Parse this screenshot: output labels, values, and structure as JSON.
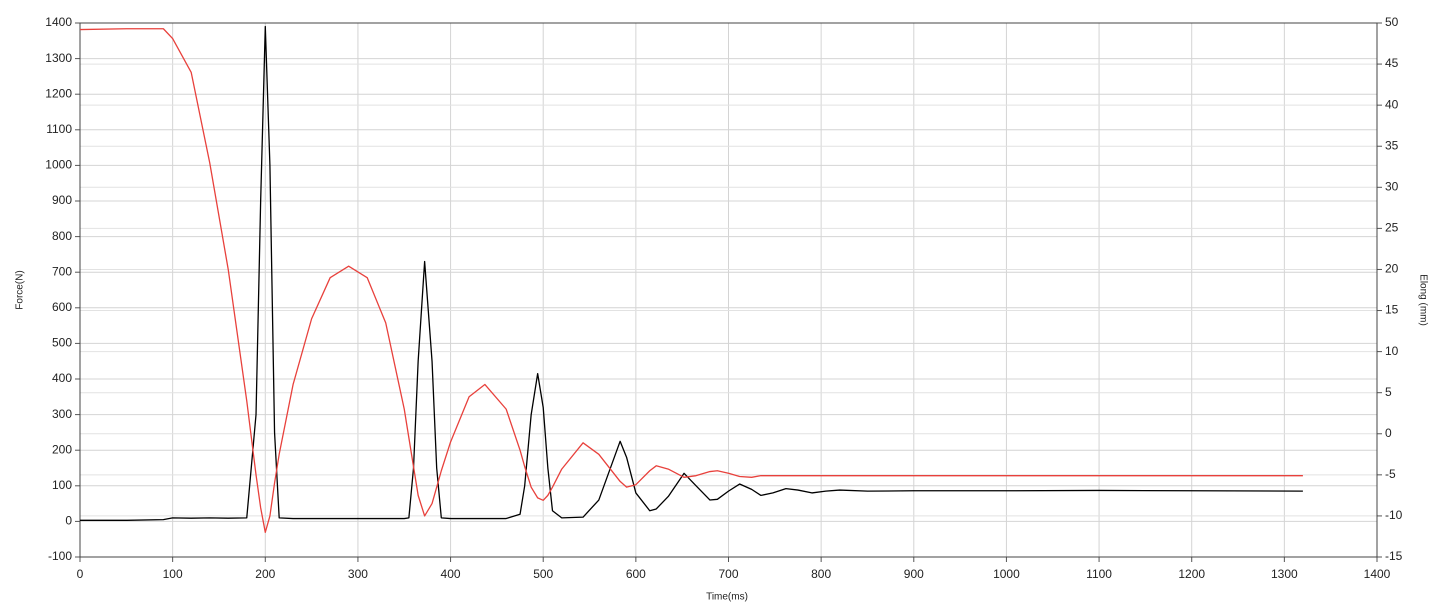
{
  "chart_data": {
    "type": "line",
    "xlabel": "Time(ms)",
    "ylabel": "Force(N)",
    "y2label": "Elong (mm)",
    "x": [
      0,
      50,
      90,
      100,
      120,
      140,
      160,
      180,
      190,
      195,
      200,
      205,
      210,
      215,
      230,
      250,
      270,
      290,
      310,
      330,
      350,
      355,
      360,
      365,
      372,
      380,
      385,
      390,
      400,
      420,
      437,
      460,
      475,
      480,
      487,
      494,
      500,
      505,
      510,
      520,
      543,
      560,
      583,
      590,
      600,
      615,
      622,
      635,
      652,
      665,
      680,
      688,
      700,
      712,
      725,
      735,
      748,
      762,
      775,
      790,
      805,
      820,
      850,
      900,
      1000,
      1100,
      1200,
      1320
    ],
    "series": [
      {
        "color": "#000000",
        "axis": "y",
        "values": [
          3,
          3,
          5,
          10,
          9,
          10,
          9,
          10,
          300,
          900,
          1390,
          1000,
          250,
          10,
          8,
          8,
          8,
          8,
          8,
          8,
          8,
          10,
          150,
          450,
          730,
          450,
          150,
          10,
          8,
          8,
          8,
          8,
          20,
          100,
          300,
          415,
          320,
          150,
          30,
          10,
          12,
          60,
          225,
          180,
          80,
          30,
          35,
          70,
          135,
          100,
          60,
          62,
          85,
          105,
          90,
          73,
          80,
          92,
          88,
          80,
          85,
          88,
          85,
          86,
          86,
          87,
          86,
          85
        ]
      },
      {
        "color": "#e8413c",
        "axis": "y2",
        "values": [
          49.2,
          49.3,
          49.3,
          48.1,
          44,
          33,
          20,
          4,
          -5,
          -9,
          -12,
          -10,
          -6,
          -2.5,
          6,
          14,
          19,
          20.4,
          19,
          13.5,
          3,
          -0.5,
          -4,
          -7.5,
          -10,
          -8.5,
          -6.5,
          -4.5,
          -1,
          4.5,
          6,
          3,
          -2,
          -4,
          -6.5,
          -7.8,
          -8.1,
          -7.5,
          -6.5,
          -4.3,
          -1.1,
          -2.5,
          -5.8,
          -6.5,
          -6.2,
          -4.5,
          -3.9,
          -4.3,
          -5.3,
          -5.1,
          -4.6,
          -4.5,
          -4.8,
          -5.2,
          -5.3,
          -5.1,
          -5.1,
          -5.1,
          -5.1,
          -5.1,
          -5.1,
          -5.1,
          -5.1,
          -5.1,
          -5.1,
          -5.1,
          -5.1,
          -5.1
        ]
      }
    ],
    "xlim": [
      0,
      1400
    ],
    "xticks": [
      0,
      100,
      200,
      300,
      400,
      500,
      600,
      700,
      800,
      900,
      1000,
      1100,
      1200,
      1300,
      1400
    ],
    "ylim": [
      -100,
      1400
    ],
    "yticks": [
      -100,
      0,
      100,
      200,
      300,
      400,
      500,
      600,
      700,
      800,
      900,
      1000,
      1100,
      1200,
      1300,
      1400
    ],
    "y2lim": [
      -15,
      50
    ],
    "y2ticks": [
      -15,
      -10,
      -5,
      0,
      5,
      10,
      15,
      20,
      25,
      30,
      35,
      40,
      45,
      50
    ],
    "grid": true
  }
}
